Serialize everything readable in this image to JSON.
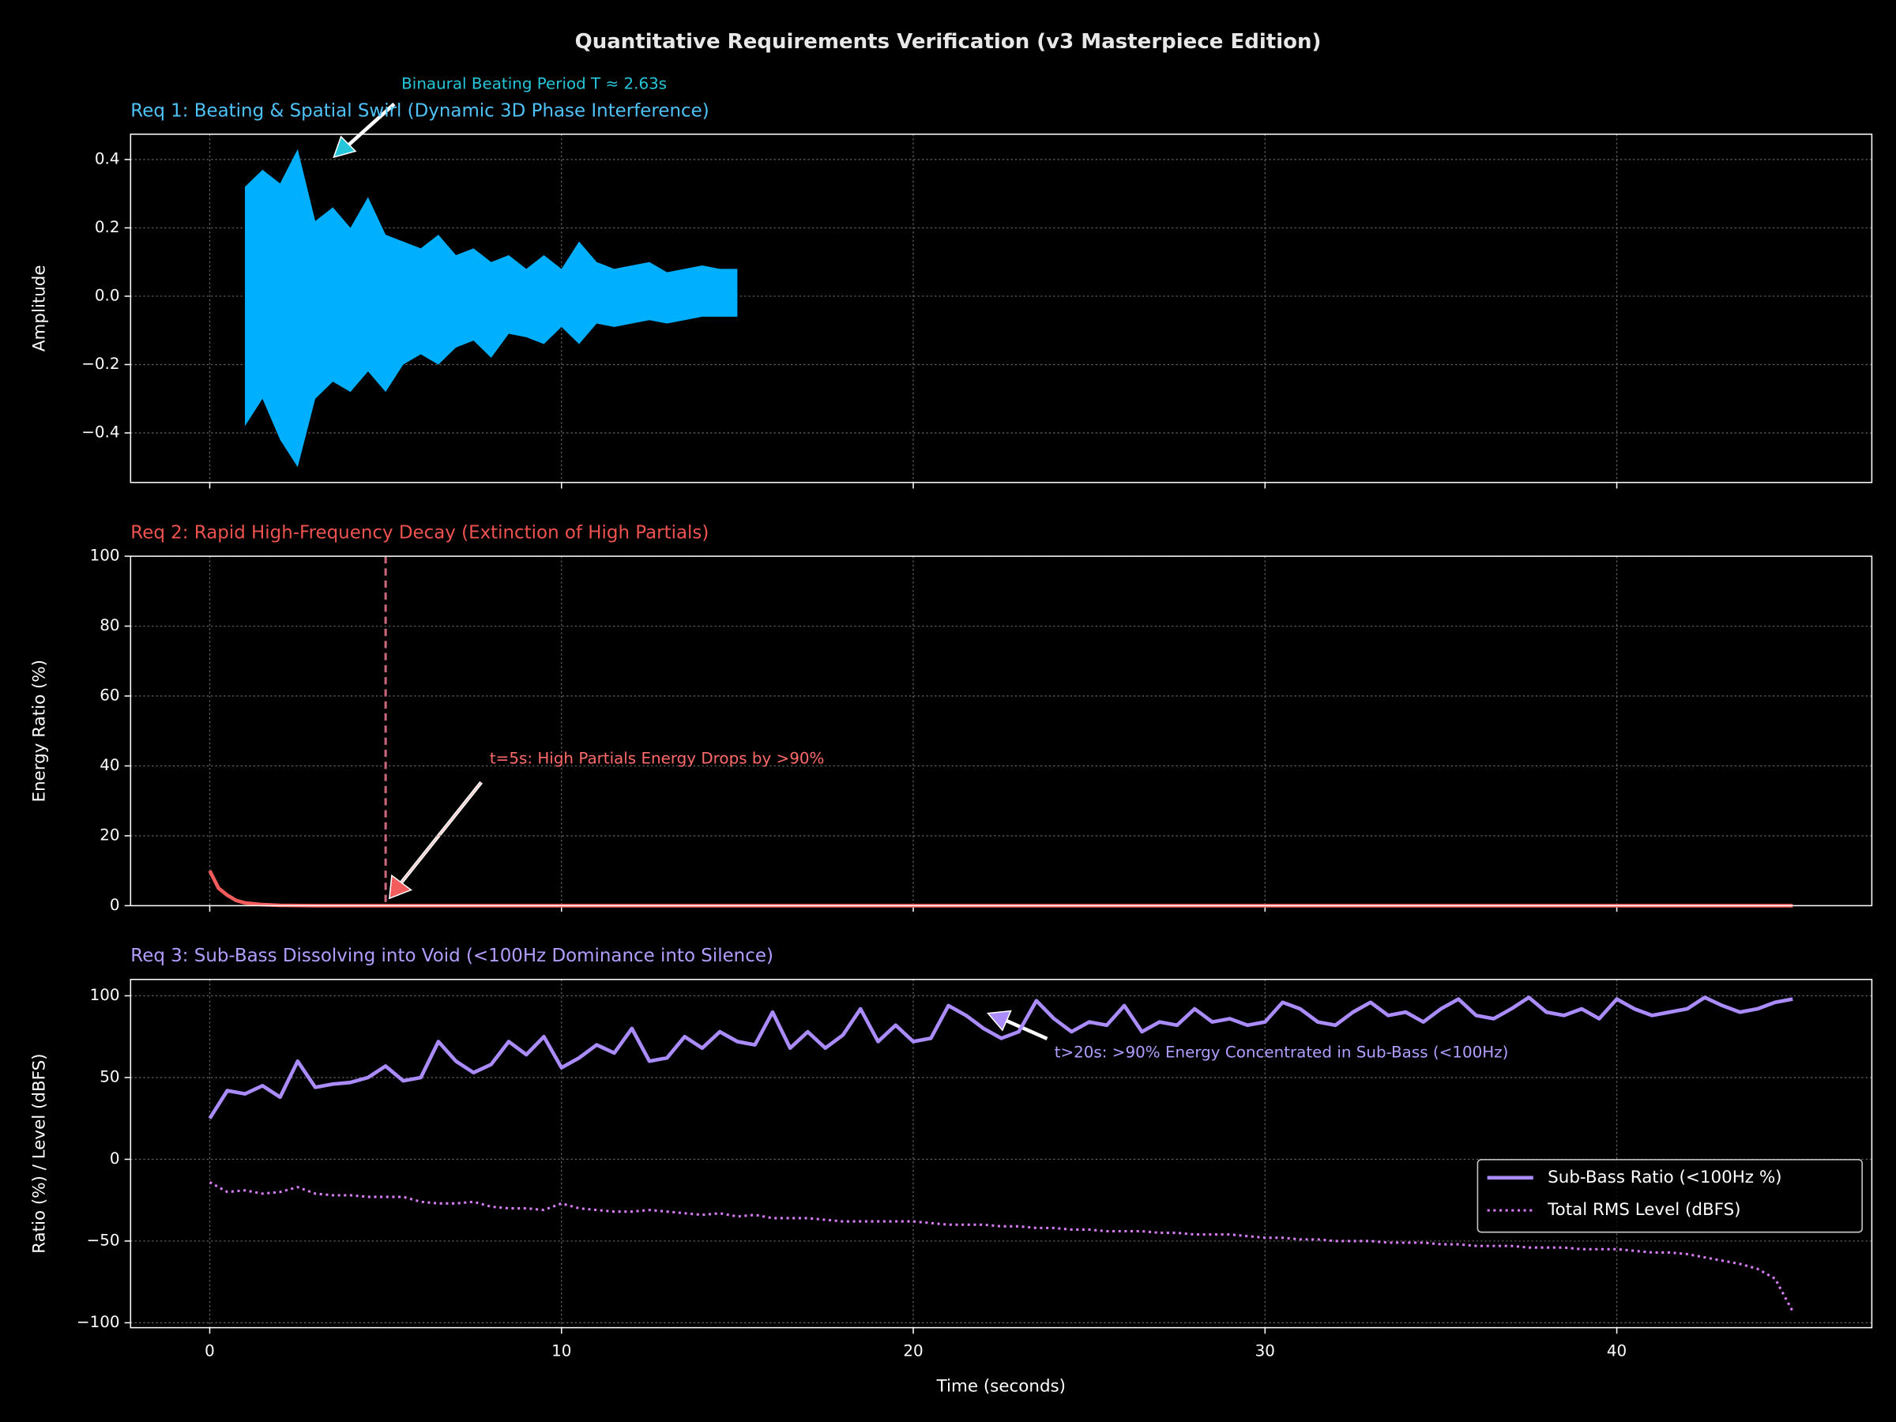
{
  "title": "Quantitative Requirements Verification (v3 Masterpiece Edition)",
  "xlabel": "Time (seconds)",
  "chart_data": [
    {
      "type": "band",
      "title": "Req 1: Beating & Spatial Swirl (Dynamic 3D Phase Interference)",
      "title_color": "#4fc3f7",
      "ylabel": "Amplitude",
      "color": "#00b0ff",
      "x": [
        1,
        1.5,
        2,
        2.5,
        3,
        3.5,
        4,
        4.5,
        5,
        5.5,
        6,
        6.5,
        7,
        7.5,
        8,
        8.5,
        9,
        9.5,
        10,
        10.5,
        11,
        11.5,
        12,
        12.5,
        13,
        13.5,
        14,
        14.5,
        15
      ],
      "upper": [
        0.32,
        0.37,
        0.33,
        0.43,
        0.22,
        0.26,
        0.2,
        0.29,
        0.18,
        0.16,
        0.14,
        0.18,
        0.12,
        0.14,
        0.1,
        0.12,
        0.08,
        0.12,
        0.08,
        0.16,
        0.1,
        0.08,
        0.09,
        0.1,
        0.07,
        0.08,
        0.09,
        0.08,
        0.08
      ],
      "lower": [
        -0.38,
        -0.3,
        -0.42,
        -0.5,
        -0.3,
        -0.25,
        -0.28,
        -0.22,
        -0.28,
        -0.2,
        -0.17,
        -0.2,
        -0.15,
        -0.13,
        -0.18,
        -0.11,
        -0.12,
        -0.14,
        -0.09,
        -0.14,
        -0.08,
        -0.09,
        -0.08,
        -0.07,
        -0.08,
        -0.07,
        -0.06,
        -0.06,
        -0.06
      ],
      "xlim": [
        -2.25,
        47.25
      ],
      "xticks": [
        0,
        10,
        20,
        30,
        40
      ],
      "show_xticklabels": false,
      "ylim": [
        -0.545,
        0.474
      ],
      "yticks": [
        {
          "value": -0.4,
          "label": "−0.4"
        },
        {
          "value": -0.2,
          "label": "−0.2"
        },
        {
          "value": 0,
          "label": "0.0"
        },
        0.2,
        0.4
      ],
      "grid": true,
      "annotation": {
        "text": "Binaural Beating Period T ≈ 2.63s",
        "color": "#26c6da"
      }
    },
    {
      "type": "line",
      "title": "Req 2: Rapid High-Frequency Decay (Extinction of High Partials)",
      "title_color": "#ef5350",
      "ylabel": "Energy Ratio (%)",
      "x": [
        0,
        0.25,
        0.5,
        0.75,
        1,
        1.5,
        2,
        3,
        5,
        10,
        20,
        30,
        40,
        45
      ],
      "series": [
        {
          "color": "#f25c5c",
          "style": "solid",
          "values": [
            10,
            5,
            3,
            1.5,
            0.8,
            0.3,
            0.1,
            0,
            0,
            0,
            0,
            0,
            0,
            0
          ]
        }
      ],
      "vline": {
        "x": 5,
        "color": "#c8687a"
      },
      "xlim": [
        -2.25,
        47.25
      ],
      "xticks": [
        0,
        10,
        20,
        30,
        40
      ],
      "show_xticklabels": false,
      "ylim": [
        0,
        100
      ],
      "yticks": [
        0,
        20,
        40,
        60,
        80,
        100
      ],
      "grid": true,
      "annotation": {
        "text": "t=5s: High Partials Energy Drops by >90%",
        "color": "#ff6b6b"
      }
    },
    {
      "type": "line",
      "title": "Req 3: Sub-Bass Dissolving into Void (<100Hz Dominance into Silence)",
      "title_color": "#b39dff",
      "ylabel": "Ratio (%) / Level (dBFS)",
      "x": [
        0,
        0.5,
        1,
        1.5,
        2,
        2.5,
        3,
        3.5,
        4,
        4.5,
        5,
        5.5,
        6,
        6.5,
        7,
        7.5,
        8,
        8.5,
        9,
        9.5,
        10,
        10.5,
        11,
        11.5,
        12,
        12.5,
        13,
        13.5,
        14,
        14.5,
        15,
        15.5,
        16,
        16.5,
        17,
        17.5,
        18,
        18.5,
        19,
        19.5,
        20,
        20.5,
        21,
        21.5,
        22,
        22.5,
        23,
        23.5,
        24,
        24.5,
        25,
        25.5,
        26,
        26.5,
        27,
        27.5,
        28,
        28.5,
        29,
        29.5,
        30,
        30.5,
        31,
        31.5,
        32,
        32.5,
        33,
        33.5,
        34,
        34.5,
        35,
        35.5,
        36,
        36.5,
        37,
        37.5,
        38,
        38.5,
        39,
        39.5,
        40,
        40.5,
        41,
        41.5,
        42,
        42.5,
        43,
        43.5,
        44,
        44.5,
        45
      ],
      "series": [
        {
          "name": "Sub-Bass Ratio (<100Hz %)",
          "color": "#ab8cff",
          "style": "solid",
          "values": [
            25,
            42,
            40,
            45,
            38,
            60,
            44,
            46,
            47,
            50,
            57,
            48,
            50,
            72,
            60,
            53,
            58,
            72,
            64,
            75,
            56,
            62,
            70,
            65,
            80,
            60,
            62,
            75,
            68,
            78,
            72,
            70,
            90,
            68,
            78,
            68,
            76,
            92,
            72,
            82,
            72,
            74,
            94,
            88,
            80,
            74,
            78,
            97,
            86,
            78,
            84,
            82,
            94,
            78,
            84,
            82,
            92,
            84,
            86,
            82,
            84,
            96,
            92,
            84,
            82,
            90,
            96,
            88,
            90,
            84,
            92,
            98,
            88,
            86,
            92,
            99,
            90,
            88,
            92,
            86,
            98,
            92,
            88,
            90,
            92,
            99,
            94,
            90,
            92,
            96,
            98
          ]
        },
        {
          "name": "Total RMS Level (dBFS)",
          "color": "#d77cf5",
          "style": "dotted",
          "values": [
            -14,
            -20,
            -19,
            -21,
            -20,
            -17,
            -21,
            -22,
            -22,
            -23,
            -23,
            -23,
            -26,
            -27,
            -27,
            -26,
            -29,
            -30,
            -30,
            -31,
            -27,
            -30,
            -31,
            -32,
            -32,
            -31,
            -32,
            -33,
            -34,
            -33,
            -35,
            -34,
            -36,
            -36,
            -36,
            -37,
            -38,
            -38,
            -38,
            -38,
            -38,
            -39,
            -40,
            -40,
            -40,
            -41,
            -41,
            -42,
            -42,
            -43,
            -43,
            -44,
            -44,
            -44,
            -45,
            -45,
            -46,
            -46,
            -46,
            -47,
            -48,
            -48,
            -49,
            -49,
            -50,
            -50,
            -50,
            -51,
            -51,
            -51,
            -52,
            -52,
            -53,
            -53,
            -53,
            -54,
            -54,
            -54,
            -55,
            -55,
            -55,
            -56,
            -57,
            -57,
            -58,
            -60,
            -62,
            -64,
            -67,
            -73,
            -93
          ]
        }
      ],
      "legend": "right",
      "xlim": [
        -2.25,
        47.25
      ],
      "xticks": [
        0,
        10,
        20,
        30,
        40
      ],
      "show_xticklabels": true,
      "ylim": [
        -103,
        110
      ],
      "yticks": [
        {
          "value": -100,
          "label": "−100"
        },
        {
          "value": -50,
          "label": "−50"
        },
        0,
        50,
        100
      ],
      "grid": true,
      "annotation": {
        "text": "t>20s: >90% Energy Concentrated in Sub-Bass (<100Hz)",
        "color": "#b39dff"
      }
    }
  ]
}
